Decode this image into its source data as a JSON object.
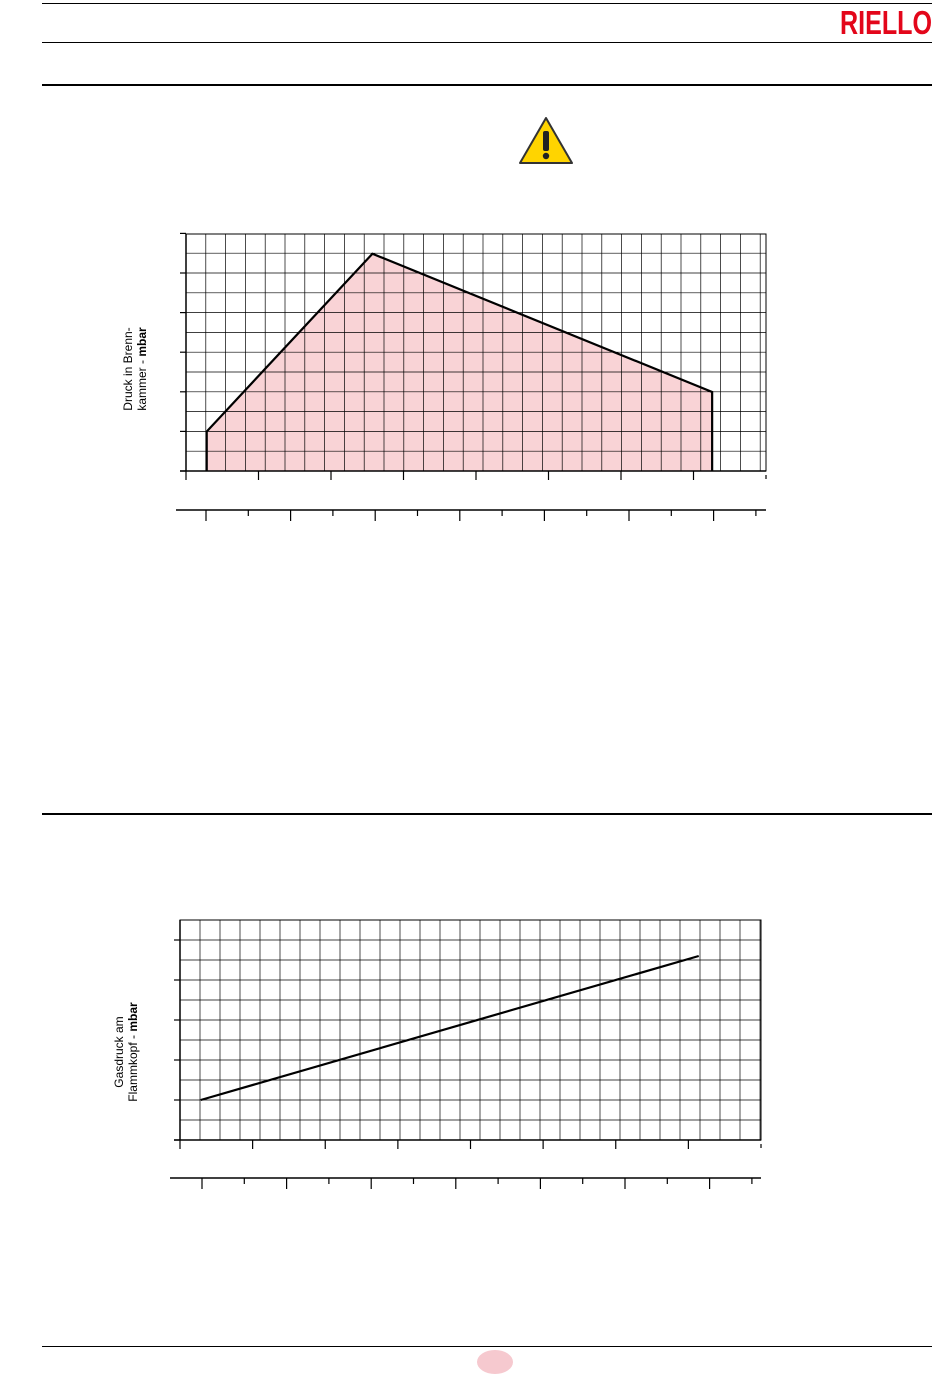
{
  "brand": {
    "logo_text": "RIELLO",
    "logo_color": "#e3061a"
  },
  "warning_icon": "warning-triangle-icon",
  "chart_data": [
    {
      "type": "area",
      "ylabel_line1": "Druck in Brenn-",
      "ylabel_line2_normal": "kammer - ",
      "ylabel_line2_bold": "mbar",
      "x_main_ticks": 8,
      "x_sub_ticks": 14,
      "y_major_ticks": 6,
      "grid": true,
      "fill_color": "#f9d3d6",
      "line_color": "#000000",
      "polygon": [
        [
          0.0,
          0.0
        ],
        [
          0.0,
          1.0
        ],
        [
          4.0,
          5.5
        ],
        [
          12.2,
          2.0
        ],
        [
          12.2,
          0.0
        ]
      ],
      "x_domain": [
        -0.5,
        13.5
      ],
      "y_domain": [
        0,
        6
      ]
    },
    {
      "type": "line",
      "ylabel_line1": "Gasdruck am",
      "ylabel_line2_normal": "Flammkopf - ",
      "ylabel_line2_bold": "mbar",
      "x_main_ticks": 8,
      "x_sub_ticks": 14,
      "y_major_ticks": 6,
      "grid": true,
      "line_color": "#000000",
      "points": [
        [
          0.0,
          1.0
        ],
        [
          12.0,
          4.6
        ]
      ],
      "x_domain": [
        -0.5,
        13.5
      ],
      "y_domain": [
        0,
        5.5
      ]
    }
  ]
}
